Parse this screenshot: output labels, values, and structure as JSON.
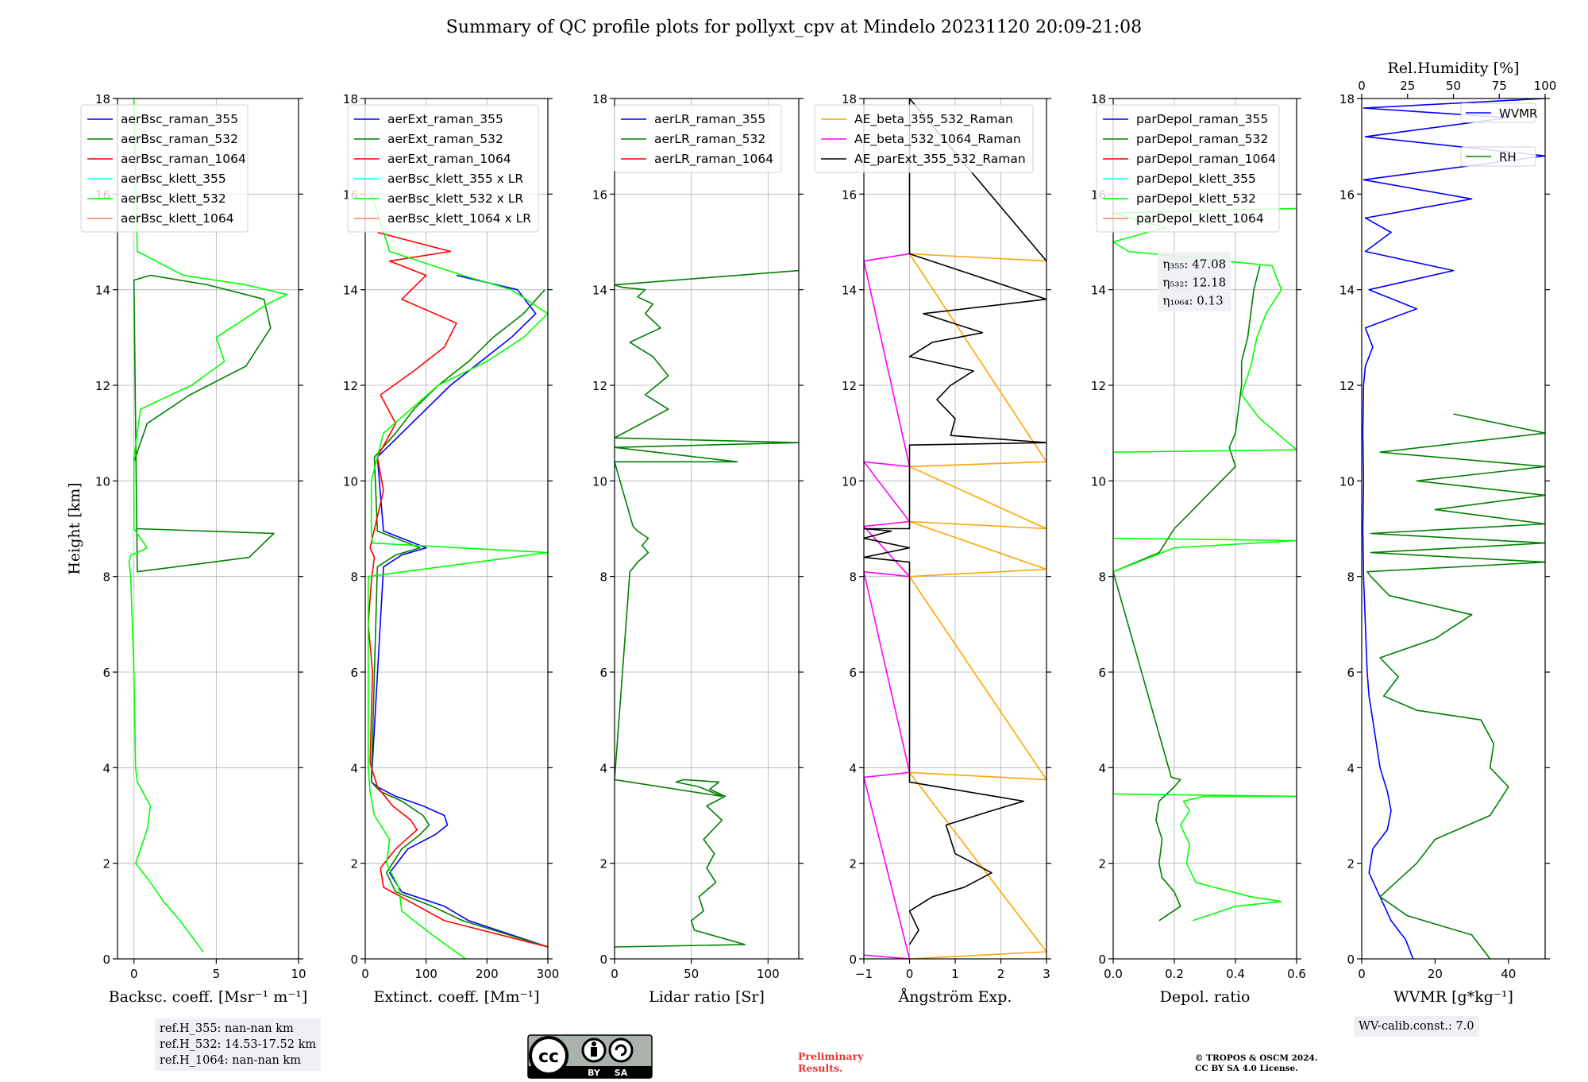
{
  "title": "Summary of QC profile plots for pollyxt_cpv at Mindelo 20231120 20:09-21:08",
  "refh": [
    "ref.H_355: nan-nan km",
    "ref.H_532: 14.53-17.52 km",
    "ref.H_1064: nan-nan km"
  ],
  "wv_calib": "WV-calib.const.: 7.0",
  "preliminary": [
    "Preliminary",
    "Results."
  ],
  "copyright": [
    "© TROPOS & OSCM 2024.",
    "CC BY SA 4.0 License."
  ],
  "cc_logo": {
    "by": "BY",
    "sa": "SA"
  },
  "colors": {
    "blue": "#0000ff",
    "green": "#008000",
    "red": "#ff0000",
    "cyan": "#00ffff",
    "lime": "#00ff00",
    "salmon": "#fa8072",
    "orange": "#ffa500",
    "magenta": "#ff00ff",
    "black": "#000000"
  },
  "chart_data": [
    {
      "type": "line",
      "ylabel": "Height [km]",
      "xlabel": "Backsc. coeff. [Msr⁻¹ m⁻¹]",
      "xlim": [
        -1,
        10
      ],
      "ylim": [
        0,
        18
      ],
      "xticks": [
        0,
        5,
        10
      ],
      "yticks": [
        0,
        2,
        4,
        6,
        8,
        10,
        12,
        14,
        16,
        18
      ],
      "grid": true,
      "legend_loc": "upper-right",
      "series": [
        {
          "name": "aerBsc_raman_355",
          "color": "blue",
          "x": [],
          "y": []
        },
        {
          "name": "aerBsc_raman_532",
          "color": "green",
          "x": [
            0,
            0.8,
            3.4,
            6.8,
            8.3,
            7.9,
            4.5,
            1.0,
            0.0,
            0.0,
            0.2,
            0.2,
            7.0,
            8.5,
            0.2
          ],
          "y": [
            10.4,
            11.2,
            11.8,
            12.4,
            13.2,
            13.8,
            14.1,
            14.3,
            14.2,
            14.2,
            8.1,
            8.1,
            8.4,
            8.9,
            9.0
          ]
        },
        {
          "name": "aerBsc_raman_1064",
          "color": "red",
          "x": [],
          "y": []
        },
        {
          "name": "aerBsc_klett_355",
          "color": "cyan",
          "x": [],
          "y": []
        },
        {
          "name": "aerBsc_klett_532",
          "color": "lime",
          "x": [
            4.2,
            2.8,
            1.8,
            1.0,
            0.1,
            0.8,
            1.0,
            0.2,
            0.1,
            0.0,
            -0.2,
            -0.3,
            -0.2,
            0.2,
            0.8,
            0.0,
            0.0,
            0.4,
            3.5,
            5.5,
            5.0,
            8.1,
            9.3,
            6.8,
            3.0,
            0.2,
            0.0
          ],
          "y": [
            0.15,
            0.8,
            1.2,
            1.6,
            2.0,
            2.7,
            3.2,
            3.7,
            4.0,
            6.0,
            8.0,
            8.3,
            8.45,
            8.5,
            8.6,
            9.0,
            10.5,
            11.5,
            12.0,
            12.5,
            13.0,
            13.7,
            13.9,
            14.1,
            14.3,
            14.8,
            18.0
          ]
        },
        {
          "name": "aerBsc_klett_1064",
          "color": "salmon",
          "x": [],
          "y": []
        }
      ]
    },
    {
      "type": "line",
      "xlabel": "Extinct. coeff. [Mm⁻¹]",
      "xlim": [
        0,
        300
      ],
      "ylim": [
        0,
        18
      ],
      "xticks": [
        0,
        100,
        200,
        300
      ],
      "yticks": [
        0,
        2,
        4,
        6,
        8,
        10,
        12,
        14,
        16,
        18
      ],
      "grid": true,
      "legend_loc": "upper-right",
      "series": [
        {
          "name": "aerExt_raman_355",
          "color": "blue",
          "x": [
            300,
            170,
            130,
            60,
            40,
            70,
            115,
            135,
            130,
            95,
            50,
            20,
            10,
            30,
            60,
            100,
            60,
            30,
            20,
            60,
            100,
            140,
            190,
            240,
            280,
            250,
            150
          ],
          "y": [
            0.25,
            0.8,
            1.1,
            1.4,
            1.8,
            2.3,
            2.6,
            2.8,
            3.0,
            3.2,
            3.4,
            3.6,
            3.7,
            8.2,
            8.45,
            8.6,
            8.8,
            8.95,
            10.5,
            11.0,
            11.5,
            12.0,
            12.5,
            13.0,
            13.5,
            14.0,
            14.3
          ]
        },
        {
          "name": "aerExt_raman_532",
          "color": "green",
          "x": [
            300,
            160,
            110,
            50,
            35,
            60,
            90,
            105,
            95,
            60,
            25,
            10,
            20,
            50,
            90,
            50,
            20,
            15,
            50,
            80,
            120,
            170,
            210,
            260,
            295
          ],
          "y": [
            0.25,
            0.8,
            1.1,
            1.4,
            1.8,
            2.3,
            2.6,
            2.8,
            3.0,
            3.3,
            3.5,
            3.7,
            8.2,
            8.45,
            8.6,
            8.8,
            8.95,
            10.5,
            11.0,
            11.5,
            12.0,
            12.5,
            13.0,
            13.5,
            14.0
          ]
        },
        {
          "name": "aerExt_raman_1064",
          "color": "red",
          "x": [
            300,
            130,
            30,
            25,
            50,
            85,
            75,
            45,
            20,
            8,
            12,
            5,
            10,
            15,
            8,
            30,
            20,
            50,
            25,
            80,
            130,
            150,
            60,
            100,
            40,
            140,
            20
          ],
          "y": [
            0.25,
            0.8,
            1.5,
            1.9,
            2.3,
            2.7,
            2.9,
            3.2,
            3.6,
            4.1,
            6.0,
            7.0,
            7.9,
            8.4,
            8.6,
            9.8,
            10.5,
            11.2,
            11.8,
            12.3,
            12.8,
            13.3,
            13.8,
            14.3,
            14.6,
            14.8,
            15.2
          ]
        },
        {
          "name": "aerBsc_klett_355 x LR",
          "color": "cyan",
          "x": [],
          "y": []
        },
        {
          "name": "aerBsc_klett_532 x LR",
          "color": "lime",
          "x": [
            165,
            110,
            60,
            55,
            35,
            40,
            15,
            8,
            5,
            5,
            300,
            12,
            10,
            10,
            30,
            120,
            200,
            260,
            300,
            240,
            160,
            40,
            10
          ],
          "y": [
            0.0,
            0.5,
            1.0,
            1.5,
            2.0,
            2.5,
            3.0,
            3.5,
            4.0,
            8.0,
            8.5,
            8.7,
            8.9,
            10.0,
            11.0,
            12.0,
            12.5,
            13.0,
            13.5,
            14.0,
            14.3,
            14.8,
            16.0
          ]
        },
        {
          "name": "aerBsc_klett_1064 x LR",
          "color": "salmon",
          "x": [],
          "y": []
        }
      ]
    },
    {
      "type": "line",
      "xlabel": "Lidar ratio [Sr]",
      "xlim": [
        0,
        120
      ],
      "ylim": [
        0,
        18
      ],
      "xticks": [
        0,
        50,
        100
      ],
      "yticks": [
        0,
        2,
        4,
        6,
        8,
        10,
        12,
        14,
        16,
        18
      ],
      "grid": true,
      "legend_loc": "upper-right",
      "series": [
        {
          "name": "aerLR_raman_355",
          "color": "blue",
          "x": [],
          "y": []
        },
        {
          "name": "aerLR_raman_532",
          "color": "green",
          "x": [
            0,
            85,
            52,
            50,
            58,
            55,
            66,
            60,
            65,
            58,
            70,
            60,
            72,
            62,
            68,
            45,
            40,
            55,
            70,
            0,
            10,
            15,
            22,
            18,
            22,
            15,
            12,
            0,
            80,
            0,
            120,
            0,
            35,
            20,
            35,
            25,
            10,
            30,
            20,
            25,
            15,
            20,
            5,
            0,
            120
          ],
          "y": [
            0.25,
            0.3,
            0.6,
            0.8,
            1.0,
            1.3,
            1.6,
            1.9,
            2.2,
            2.5,
            2.9,
            3.2,
            3.4,
            3.55,
            3.7,
            3.75,
            3.7,
            3.6,
            3.4,
            3.75,
            8.1,
            8.3,
            8.5,
            8.65,
            8.8,
            8.95,
            9.05,
            10.4,
            10.4,
            10.7,
            10.8,
            10.9,
            11.5,
            11.8,
            12.2,
            12.6,
            12.9,
            13.2,
            13.5,
            13.7,
            13.85,
            14.0,
            14.05,
            14.1,
            14.4
          ]
        },
        {
          "name": "aerLR_raman_1064",
          "color": "red",
          "x": [],
          "y": []
        }
      ]
    },
    {
      "type": "line",
      "xlabel": "Ångström Exp.",
      "xlim": [
        -1,
        3
      ],
      "ylim": [
        0,
        18
      ],
      "xticks": [
        -1,
        0,
        1,
        2,
        3
      ],
      "yticks": [
        0,
        2,
        4,
        6,
        8,
        10,
        12,
        14,
        16,
        18
      ],
      "grid": true,
      "legend_loc": "upper-right",
      "series": [
        {
          "name": "AE_beta_355_532_Raman",
          "color": "orange",
          "x": [
            0,
            3,
            0,
            3,
            0,
            3,
            0,
            3,
            0,
            3,
            0,
            3
          ],
          "y": [
            0,
            0.15,
            3.9,
            3.75,
            8.0,
            8.15,
            9.15,
            9.0,
            10.3,
            10.4,
            14.75,
            14.6
          ]
        },
        {
          "name": "AE_beta_532_1064_Raman",
          "color": "magenta",
          "x": [
            -1,
            0,
            -1,
            0,
            -1,
            0,
            -1,
            0,
            -1,
            0,
            -1,
            0
          ],
          "y": [
            0.08,
            0,
            3.8,
            3.9,
            8.1,
            8.0,
            9.05,
            9.15,
            10.4,
            10.3,
            14.6,
            14.75
          ]
        },
        {
          "name": "AE_parExt_355_532_Raman",
          "color": "black",
          "x": [
            0,
            0.2,
            0.0,
            0.5,
            1.2,
            1.8,
            1.0,
            0.8,
            1.8,
            2.5,
            0.0,
            0.0,
            0.0,
            -1,
            0,
            -1,
            -0.4,
            -1,
            0,
            0,
            3,
            0.9,
            1.0,
            0.6,
            0.9,
            1.4,
            0.0,
            0.5,
            1.6,
            0.3,
            3,
            0.0,
            0.0,
            3
          ],
          "y": [
            0.3,
            0.6,
            1.0,
            1.3,
            1.5,
            1.8,
            2.2,
            2.8,
            3.1,
            3.3,
            3.7,
            8.2,
            8.3,
            8.4,
            8.6,
            8.8,
            8.95,
            9.0,
            9.0,
            10.75,
            10.8,
            10.95,
            11.3,
            11.7,
            12.0,
            12.3,
            12.6,
            12.9,
            13.1,
            13.5,
            13.8,
            14.75,
            18.0,
            14.6
          ]
        }
      ]
    },
    {
      "type": "line",
      "xlabel": "Depol. ratio",
      "xlim": [
        0,
        0.6
      ],
      "ylim": [
        0,
        18
      ],
      "xticks": [
        0.0,
        0.2,
        0.4,
        0.6
      ],
      "yticks": [
        0,
        2,
        4,
        6,
        8,
        10,
        12,
        14,
        16,
        18
      ],
      "grid": true,
      "legend_loc": "upper-right",
      "annotation": {
        "lines": [
          "η₃₅₅: 47.08",
          "η₅₃₂: 12.18",
          "η₁₀₆₄: 0.13"
        ]
      },
      "series": [
        {
          "name": "parDepol_raman_355",
          "color": "blue",
          "x": [],
          "y": []
        },
        {
          "name": "parDepol_raman_532",
          "color": "green",
          "x": [
            0.15,
            0.22,
            0.2,
            0.16,
            0.15,
            0.16,
            0.14,
            0.15,
            0.2,
            0.22,
            0.19,
            0.0,
            0.15,
            0.2,
            0.4,
            0.38,
            0.4,
            0.41,
            0.42,
            0.42,
            0.44,
            0.45,
            0.46,
            0.48
          ],
          "y": [
            0.8,
            1.1,
            1.4,
            1.7,
            2.0,
            2.5,
            2.9,
            3.3,
            3.6,
            3.75,
            3.8,
            8.1,
            8.5,
            9.0,
            10.3,
            10.7,
            11.0,
            11.5,
            12.0,
            12.5,
            13.0,
            13.5,
            14.0,
            14.5
          ]
        },
        {
          "name": "parDepol_raman_1064",
          "color": "red",
          "x": [],
          "y": []
        },
        {
          "name": "parDepol_klett_355",
          "color": "cyan",
          "x": [],
          "y": []
        },
        {
          "name": "parDepol_klett_532",
          "color": "lime",
          "x": [
            0.26,
            0.4,
            0.55,
            0.45,
            0.27,
            0.24,
            0.25,
            0.22,
            0.25,
            0.23,
            0.3,
            0.6,
            0.0,
            0.0,
            0.2,
            0.6,
            0.0,
            0.0,
            0.6,
            0.48,
            0.42,
            0.45,
            0.47,
            0.5,
            0.55,
            0.52,
            0.05,
            0.0,
            0.17,
            0.0,
            0.6
          ],
          "y": [
            0.8,
            1.1,
            1.2,
            1.3,
            1.6,
            2.0,
            2.4,
            2.8,
            3.1,
            3.3,
            3.4,
            3.4,
            3.45,
            8.1,
            8.6,
            8.75,
            8.8,
            10.6,
            10.65,
            11.3,
            11.8,
            12.4,
            13.0,
            13.5,
            14.0,
            14.5,
            14.8,
            15.0,
            15.3,
            15.6,
            15.7
          ]
        },
        {
          "name": "parDepol_klett_1064",
          "color": "salmon",
          "x": [],
          "y": []
        }
      ]
    },
    {
      "type": "line",
      "xlabel": "WVMR [g*kg⁻¹]",
      "xlabel_top": "Rel.Humidity [%]",
      "xlim": [
        0,
        50
      ],
      "ylim": [
        0,
        18
      ],
      "xlim_top": [
        0,
        100
      ],
      "xticks": [
        0,
        20,
        40
      ],
      "xticks_top": [
        0,
        25,
        50,
        75,
        100
      ],
      "yticks": [
        0,
        2,
        4,
        6,
        8,
        10,
        12,
        14,
        16,
        18
      ],
      "grid": false,
      "legend_loc": "upper-right",
      "series": [
        {
          "name": "WVMR",
          "color": "blue",
          "axis": "bottom",
          "x": [
            14,
            12,
            8,
            5,
            2,
            3,
            7,
            8,
            7,
            5,
            4,
            3,
            2,
            1.5,
            1,
            0.5,
            0.3,
            0.5,
            0.3,
            0.5,
            1,
            3,
            1,
            15,
            2,
            25,
            1,
            8,
            1,
            30,
            0.5,
            50,
            1,
            40,
            0.5,
            50
          ],
          "y": [
            0.0,
            0.4,
            0.8,
            1.3,
            1.8,
            2.3,
            2.7,
            3.1,
            3.5,
            4.0,
            4.5,
            5.0,
            5.5,
            6.0,
            7.0,
            8.0,
            9.0,
            10.0,
            11.0,
            12.0,
            12.4,
            12.8,
            13.2,
            13.6,
            14.0,
            14.4,
            14.8,
            15.2,
            15.5,
            15.9,
            16.3,
            16.8,
            17.2,
            17.6,
            17.8,
            18.0
          ]
        },
        {
          "name": "RH",
          "color": "green",
          "axis": "top",
          "x": [
            70,
            60,
            25,
            10,
            30,
            40,
            52,
            70,
            75,
            80,
            70,
            72,
            65,
            30,
            12,
            20,
            10,
            40,
            60,
            15,
            5,
            3,
            100,
            5,
            100,
            5,
            100,
            40,
            100,
            30,
            100,
            10,
            100,
            50
          ],
          "y": [
            0.0,
            0.5,
            0.9,
            1.3,
            2.0,
            2.5,
            2.7,
            3.0,
            3.3,
            3.6,
            4.0,
            4.5,
            5.0,
            5.2,
            5.5,
            5.9,
            6.3,
            6.7,
            7.2,
            7.6,
            8.0,
            8.1,
            8.3,
            8.5,
            8.7,
            8.9,
            9.1,
            9.4,
            9.7,
            10.0,
            10.3,
            10.6,
            11.0,
            11.4
          ]
        }
      ]
    }
  ]
}
